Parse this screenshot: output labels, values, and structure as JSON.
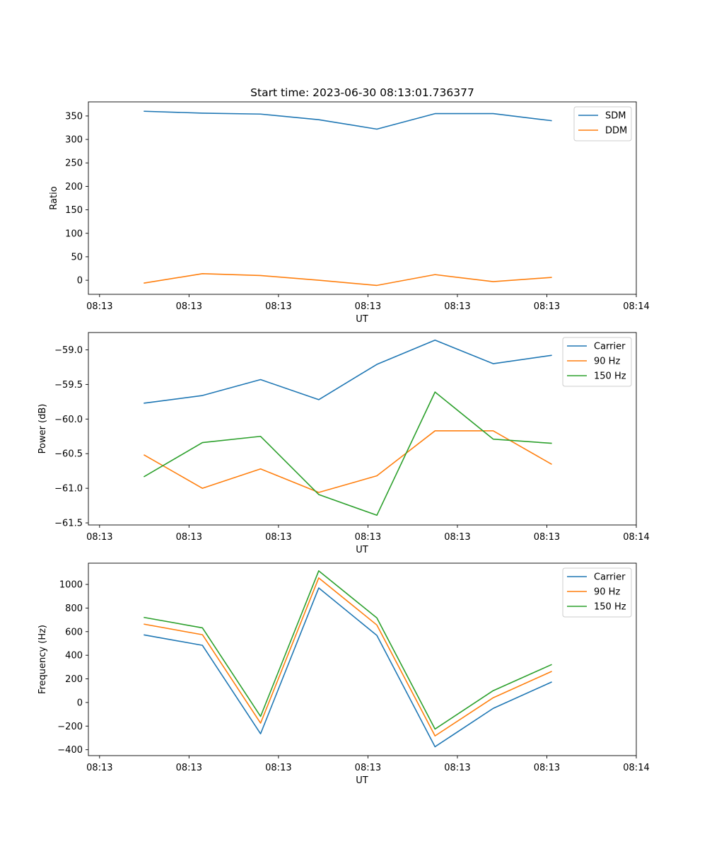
{
  "figure": {
    "title": "Start time: 2023-06-30 08:13:01.736377"
  },
  "chart_data": [
    {
      "type": "line",
      "title": "Start time: 2023-06-30 08:13:01.736377",
      "xlabel": "UT",
      "ylabel": "Ratio",
      "x_ticks": [
        "08:13",
        "08:13",
        "08:13",
        "08:13",
        "08:13",
        "08:13",
        "08:14"
      ],
      "x_tick_values": [
        0,
        1,
        2,
        3,
        4,
        5,
        6
      ],
      "x_range": [
        -0.125,
        6.0
      ],
      "x": [
        0.5,
        1.15,
        1.8,
        2.45,
        3.1,
        3.75,
        4.4,
        5.05
      ],
      "ylim": [
        -30,
        380
      ],
      "y_ticks": [
        0,
        50,
        100,
        150,
        200,
        250,
        300,
        350
      ],
      "legend_position": "top-right",
      "grid": false,
      "series": [
        {
          "name": "SDM",
          "color": "#1f77b4",
          "values": [
            360,
            356,
            354,
            342,
            322,
            355,
            355,
            340
          ]
        },
        {
          "name": "DDM",
          "color": "#ff7f0e",
          "values": [
            -6,
            14,
            10,
            0,
            -11,
            12,
            -3,
            6
          ]
        }
      ]
    },
    {
      "type": "line",
      "xlabel": "UT",
      "ylabel": "Power (dB)",
      "x_ticks": [
        "08:13",
        "08:13",
        "08:13",
        "08:13",
        "08:13",
        "08:13",
        "08:14"
      ],
      "x_tick_values": [
        0,
        1,
        2,
        3,
        4,
        5,
        6
      ],
      "x_range": [
        -0.125,
        6.0
      ],
      "x": [
        0.5,
        1.15,
        1.8,
        2.45,
        3.1,
        3.75,
        4.4,
        5.05
      ],
      "ylim": [
        -61.53,
        -58.75
      ],
      "y_ticks": [
        -61.5,
        -61.0,
        -60.5,
        -60.0,
        -59.5,
        -59.0
      ],
      "y_tick_labels": [
        "−61.5",
        "−61.0",
        "−60.5",
        "−60.0",
        "−59.5",
        "−59.0"
      ],
      "legend_position": "top-right",
      "grid": false,
      "series": [
        {
          "name": "Carrier",
          "color": "#1f77b4",
          "values": [
            -59.77,
            -59.66,
            -59.43,
            -59.72,
            -59.21,
            -58.86,
            -59.2,
            -59.08
          ]
        },
        {
          "name": "90 Hz",
          "color": "#ff7f0e",
          "values": [
            -60.52,
            -61.0,
            -60.72,
            -61.06,
            -60.82,
            -60.17,
            -60.17,
            -60.65
          ]
        },
        {
          "name": "150 Hz",
          "color": "#2ca02c",
          "values": [
            -60.83,
            -60.34,
            -60.25,
            -61.09,
            -61.39,
            -59.61,
            -60.29,
            -60.35
          ]
        }
      ]
    },
    {
      "type": "line",
      "xlabel": "UT",
      "ylabel": "Frequency (Hz)",
      "x_ticks": [
        "08:13",
        "08:13",
        "08:13",
        "08:13",
        "08:13",
        "08:13",
        "08:14"
      ],
      "x_tick_values": [
        0,
        1,
        2,
        3,
        4,
        5,
        6
      ],
      "x_range": [
        -0.125,
        6.0
      ],
      "x": [
        0.5,
        1.15,
        1.8,
        2.45,
        3.1,
        3.75,
        4.4,
        5.05
      ],
      "ylim": [
        -450,
        1180
      ],
      "y_ticks": [
        -400,
        -200,
        0,
        200,
        400,
        600,
        800,
        1000
      ],
      "y_tick_labels": [
        "−400",
        "−200",
        "0",
        "200",
        "400",
        "600",
        "800",
        "1000"
      ],
      "legend_position": "top-right",
      "grid": false,
      "series": [
        {
          "name": "Carrier",
          "color": "#1f77b4",
          "values": [
            572,
            484,
            -265,
            970,
            568,
            -375,
            -50,
            172
          ]
        },
        {
          "name": "90 Hz",
          "color": "#ff7f0e",
          "values": [
            663,
            574,
            -175,
            1055,
            656,
            -283,
            40,
            262
          ]
        },
        {
          "name": "150 Hz",
          "color": "#2ca02c",
          "values": [
            720,
            632,
            -118,
            1115,
            716,
            -225,
            100,
            320
          ]
        }
      ]
    }
  ]
}
